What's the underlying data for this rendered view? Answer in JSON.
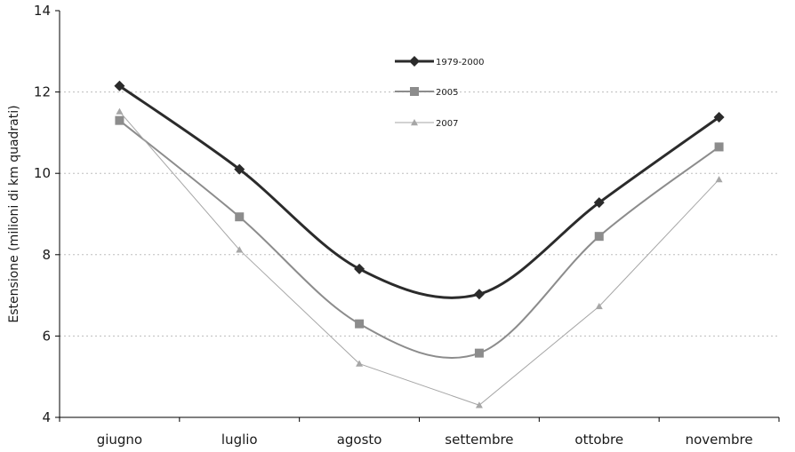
{
  "chart_data": {
    "type": "line",
    "title": "",
    "xlabel": "",
    "ylabel": "Estensione (milioni di km quadrati)",
    "categories": [
      "giugno",
      "luglio",
      "agosto",
      "settembre",
      "ottobre",
      "novembre"
    ],
    "ylim": [
      4,
      14
    ],
    "yticks": [
      "4",
      "6",
      "8",
      "10",
      "12",
      "14"
    ],
    "grid": "horizontal dotted",
    "legend_position": "top-center",
    "series": [
      {
        "name": "1979-2000",
        "values": [
          12.15,
          10.1,
          7.65,
          7.03,
          9.28,
          11.38
        ],
        "color": "#2b2b2b",
        "marker": "diamond",
        "smooth": true
      },
      {
        "name": "2005",
        "values": [
          11.3,
          8.93,
          6.3,
          5.58,
          8.45,
          10.65
        ],
        "color": "#8c8c8c",
        "marker": "square",
        "smooth": true
      },
      {
        "name": "2007",
        "values": [
          11.52,
          8.12,
          5.32,
          4.3,
          6.73,
          9.85
        ],
        "color": "#a6a6a6",
        "marker": "triangle",
        "smooth": false
      }
    ]
  }
}
